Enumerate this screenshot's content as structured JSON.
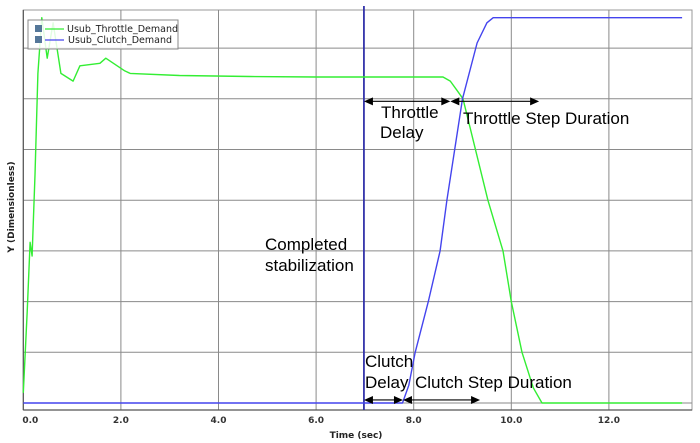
{
  "chart_data": {
    "type": "line",
    "title": "",
    "xlabel": "Time (sec)",
    "ylabel": "Y (Dimensionless)",
    "xlim": [
      0,
      13.5
    ],
    "ylim": [
      -0.15,
      7.8
    ],
    "x_ticks": [
      0,
      2,
      4,
      6,
      8,
      10,
      12
    ],
    "x_tick_labels": [
      "0.0",
      "2.0",
      "4.0",
      "6.0",
      "8.0",
      "10.0",
      "12.0"
    ],
    "y_gridlines": [
      0,
      1,
      2,
      3,
      4,
      5,
      6,
      7
    ],
    "grid": true,
    "legend_position": "top-left",
    "series": [
      {
        "name": "Usub_Throttle_Demand",
        "color": "#33ee33",
        "x": [
          0,
          0.08,
          0.14,
          0.18,
          0.24,
          0.3,
          0.38,
          0.49,
          0.61,
          0.77,
          1.02,
          1.16,
          1.57,
          1.69,
          2.08,
          2.19,
          3.2,
          4.64,
          6.0,
          8.6,
          8.75,
          8.9,
          9.01,
          9.52,
          9.83,
          10.0,
          10.22,
          10.45,
          10.63,
          13.5
        ],
        "y": [
          0.2,
          1.8,
          3.17,
          2.9,
          4.5,
          6.5,
          7.6,
          6.8,
          7.5,
          6.5,
          6.35,
          6.65,
          6.7,
          6.8,
          6.55,
          6.5,
          6.46,
          6.44,
          6.43,
          6.43,
          6.35,
          6.15,
          6.0,
          4.0,
          3.0,
          2.0,
          1.0,
          0.3,
          0.0,
          0.0
        ]
      },
      {
        "name": "Usub_Clutch_Demand",
        "color": "#4444ee",
        "x": [
          0,
          7.77,
          7.9,
          8.03,
          8.3,
          8.54,
          8.68,
          9.0,
          9.3,
          9.5,
          9.63,
          13.5
        ],
        "y": [
          0,
          0,
          0.35,
          1.0,
          2.0,
          3.0,
          4.0,
          6.0,
          7.1,
          7.5,
          7.6,
          7.6
        ]
      }
    ],
    "marker_line": {
      "x": 6.98,
      "color": "#3333aa"
    },
    "annotations": {
      "completed": [
        "Completed",
        "stabilization"
      ],
      "throttle_delay": [
        "Throttle",
        "Delay"
      ],
      "throttle_step": "Throttle Step Duration",
      "clutch_delay": [
        "Clutch",
        "Delay"
      ],
      "clutch_step": "Clutch Step Duration"
    },
    "arrows": [
      {
        "name": "throttle-delay-arrow",
        "x0": 6.98,
        "x1": 8.75,
        "y": 5.95
      },
      {
        "name": "throttle-step-arrow",
        "x0": 8.75,
        "x1": 10.57,
        "y": 5.95
      },
      {
        "name": "clutch-delay-arrow",
        "x0": 6.98,
        "x1": 7.78,
        "y": 0.06
      },
      {
        "name": "clutch-step-arrow",
        "x0": 7.78,
        "x1": 9.36,
        "y": 0.06
      }
    ]
  }
}
